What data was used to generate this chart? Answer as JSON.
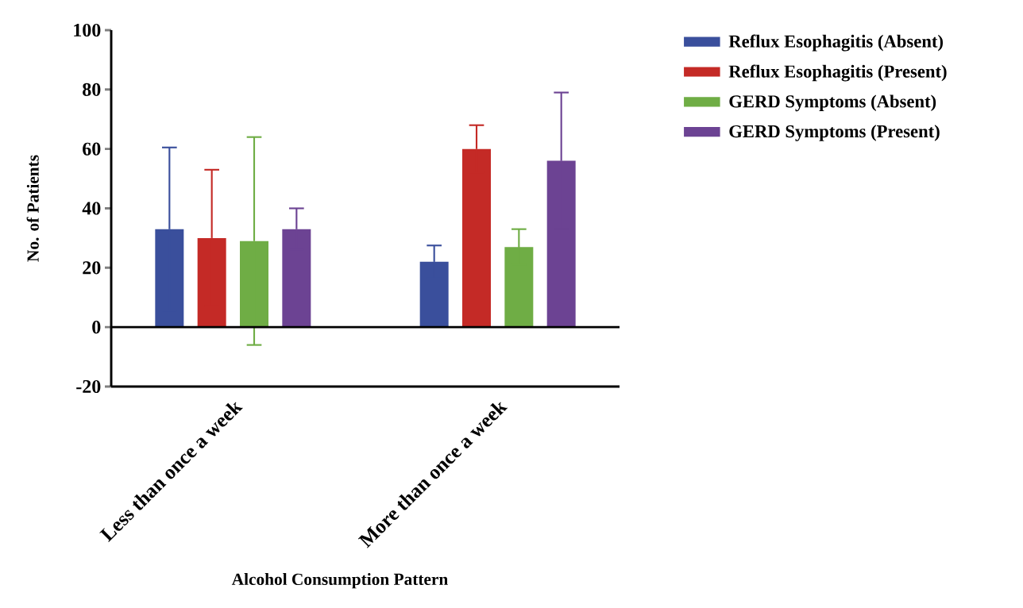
{
  "chart_data": {
    "type": "bar",
    "xlabel": "Alcohol Consumption Pattern",
    "ylabel": "No. of Patients",
    "categories": [
      "Less than once a week",
      "More than once a week"
    ],
    "series": [
      {
        "name": "Reflux Esophagitis (Absent)",
        "color": "#3a4f9c",
        "values": [
          33,
          22
        ],
        "errors": [
          27.5,
          5.5
        ]
      },
      {
        "name": "Reflux Esophagitis (Present)",
        "color": "#c42a26",
        "values": [
          30,
          60
        ],
        "errors": [
          23,
          8
        ]
      },
      {
        "name": "GERD Symptoms (Absent)",
        "color": "#6fad45",
        "values": [
          29,
          27
        ],
        "errors": [
          35,
          6
        ]
      },
      {
        "name": "GERD Symptoms (Present)",
        "color": "#6c4393",
        "values": [
          33,
          56
        ],
        "errors": [
          7,
          23
        ]
      }
    ],
    "ylim": [
      -20,
      100
    ],
    "yticks": [
      -20,
      0,
      20,
      40,
      60,
      80,
      100
    ],
    "legend": "top right"
  }
}
